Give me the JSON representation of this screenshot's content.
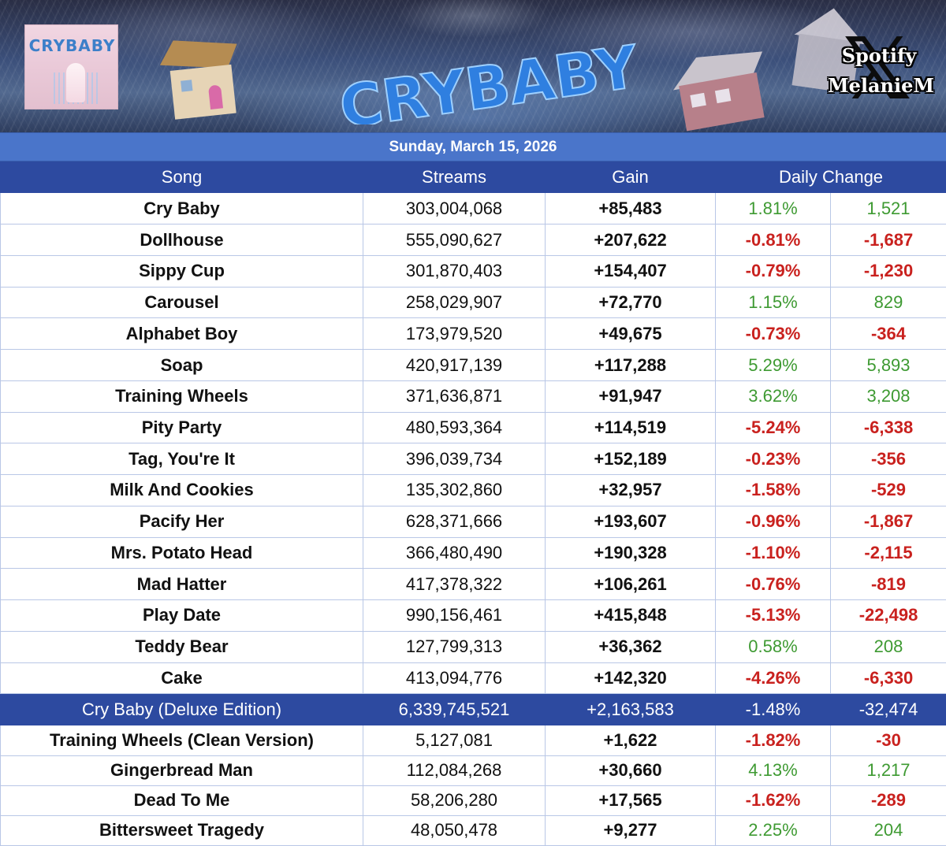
{
  "banner": {
    "album_cover_title": "CRYBABY",
    "title": "CRYBABY",
    "badge_top": "Spotify",
    "badge_bottom": "MelanieM",
    "badge_icon": "x-logo"
  },
  "date": "Sunday, March 15, 2026",
  "table": {
    "headers": {
      "song": "Song",
      "streams": "Streams",
      "gain": "Gain",
      "daily_change": "Daily Change"
    },
    "colors": {
      "positive": "#3e9a32",
      "negative": "#c9211e",
      "header_bg": "#2d4aa0",
      "date_bg": "#4a75ca"
    },
    "rows": [
      {
        "song": "Cry Baby",
        "streams": "303,004,068",
        "gain": "+85,483",
        "pct": "1.81%",
        "delta": "1,521",
        "trend": "pos"
      },
      {
        "song": "Dollhouse",
        "streams": "555,090,627",
        "gain": "+207,622",
        "pct": "-0.81%",
        "delta": "-1,687",
        "trend": "neg"
      },
      {
        "song": "Sippy Cup",
        "streams": "301,870,403",
        "gain": "+154,407",
        "pct": "-0.79%",
        "delta": "-1,230",
        "trend": "neg"
      },
      {
        "song": "Carousel",
        "streams": "258,029,907",
        "gain": "+72,770",
        "pct": "1.15%",
        "delta": "829",
        "trend": "pos"
      },
      {
        "song": "Alphabet Boy",
        "streams": "173,979,520",
        "gain": "+49,675",
        "pct": "-0.73%",
        "delta": "-364",
        "trend": "neg"
      },
      {
        "song": "Soap",
        "streams": "420,917,139",
        "gain": "+117,288",
        "pct": "5.29%",
        "delta": "5,893",
        "trend": "pos"
      },
      {
        "song": "Training Wheels",
        "streams": "371,636,871",
        "gain": "+91,947",
        "pct": "3.62%",
        "delta": "3,208",
        "trend": "pos"
      },
      {
        "song": "Pity Party",
        "streams": "480,593,364",
        "gain": "+114,519",
        "pct": "-5.24%",
        "delta": "-6,338",
        "trend": "neg"
      },
      {
        "song": "Tag, You're It",
        "streams": "396,039,734",
        "gain": "+152,189",
        "pct": "-0.23%",
        "delta": "-356",
        "trend": "neg"
      },
      {
        "song": "Milk And Cookies",
        "streams": "135,302,860",
        "gain": "+32,957",
        "pct": "-1.58%",
        "delta": "-529",
        "trend": "neg"
      },
      {
        "song": "Pacify Her",
        "streams": "628,371,666",
        "gain": "+193,607",
        "pct": "-0.96%",
        "delta": "-1,867",
        "trend": "neg"
      },
      {
        "song": "Mrs. Potato Head",
        "streams": "366,480,490",
        "gain": "+190,328",
        "pct": "-1.10%",
        "delta": "-2,115",
        "trend": "neg"
      },
      {
        "song": "Mad Hatter",
        "streams": "417,378,322",
        "gain": "+106,261",
        "pct": "-0.76%",
        "delta": "-819",
        "trend": "neg"
      },
      {
        "song": "Play Date",
        "streams": "990,156,461",
        "gain": "+415,848",
        "pct": "-5.13%",
        "delta": "-22,498",
        "trend": "neg"
      },
      {
        "song": "Teddy Bear",
        "streams": "127,799,313",
        "gain": "+36,362",
        "pct": "0.58%",
        "delta": "208",
        "trend": "pos"
      },
      {
        "song": "Cake",
        "streams": "413,094,776",
        "gain": "+142,320",
        "pct": "-4.26%",
        "delta": "-6,330",
        "trend": "neg"
      }
    ],
    "total": {
      "song": "Cry Baby (Deluxe Edition)",
      "streams": "6,339,745,521",
      "gain": "+2,163,583",
      "pct": "-1.48%",
      "delta": "-32,474"
    },
    "bonus_rows": [
      {
        "song": "Training Wheels (Clean Version)",
        "streams": "5,127,081",
        "gain": "+1,622",
        "pct": "-1.82%",
        "delta": "-30",
        "trend": "neg"
      },
      {
        "song": "Gingerbread Man",
        "streams": "112,084,268",
        "gain": "+30,660",
        "pct": "4.13%",
        "delta": "1,217",
        "trend": "pos"
      },
      {
        "song": "Dead To Me",
        "streams": "58,206,280",
        "gain": "+17,565",
        "pct": "-1.62%",
        "delta": "-289",
        "trend": "neg"
      },
      {
        "song": "Bittersweet Tragedy",
        "streams": "48,050,478",
        "gain": "+9,277",
        "pct": "2.25%",
        "delta": "204",
        "trend": "pos"
      }
    ]
  }
}
